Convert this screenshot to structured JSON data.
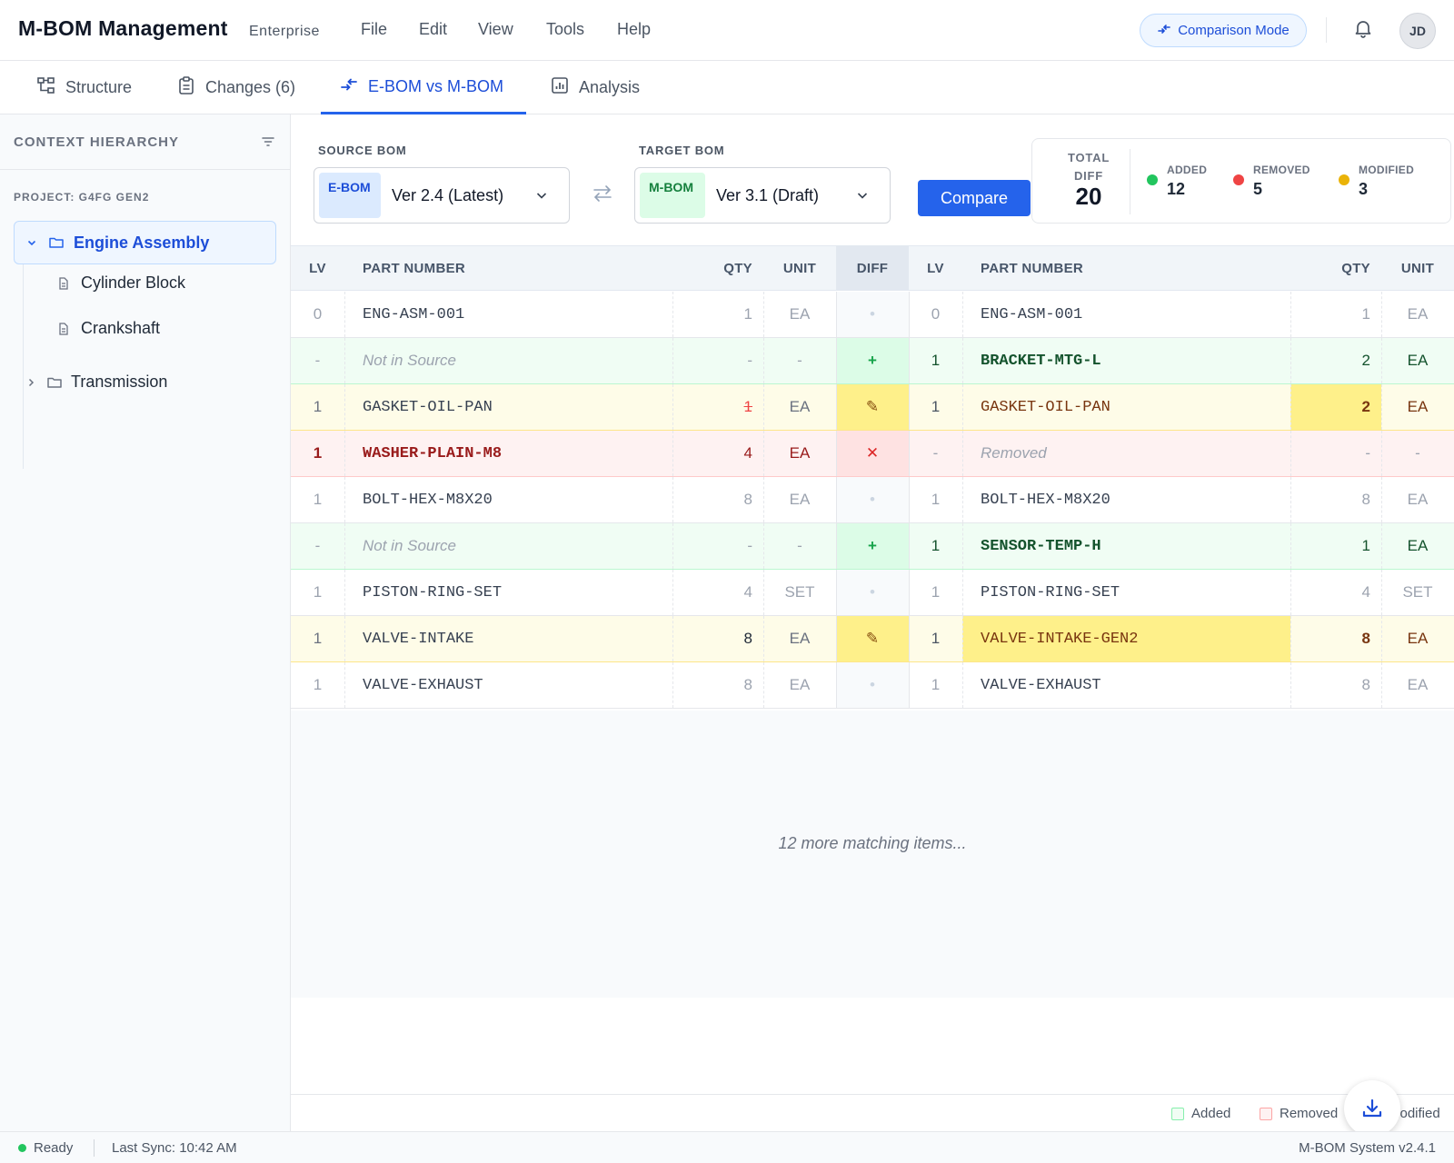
{
  "app": {
    "title": "M-BOM Management",
    "edition": "Enterprise"
  },
  "menu": [
    "File",
    "Edit",
    "View",
    "Tools",
    "Help"
  ],
  "header": {
    "comparison_mode": "Comparison Mode",
    "avatar_initials": "JD"
  },
  "tabs": [
    {
      "label": "Structure",
      "icon": "hierarchy-icon"
    },
    {
      "label": "Changes (6)",
      "icon": "clipboard-icon"
    },
    {
      "label": "E-BOM vs M-BOM",
      "icon": "compare-arrows-icon",
      "active": true
    },
    {
      "label": "Analysis",
      "icon": "bar-chart-icon"
    }
  ],
  "sidebar": {
    "title": "CONTEXT HIERARCHY",
    "project": "PROJECT: G4FG GEN2",
    "tree": [
      {
        "label": "Engine Assembly",
        "expanded": true,
        "selected": true
      },
      {
        "label": "Cylinder Block"
      },
      {
        "label": "Crankshaft"
      },
      {
        "label": "Transmission",
        "expanded": false
      }
    ]
  },
  "compare": {
    "source_label": "SOURCE BOM",
    "source_badge": "E-BOM",
    "source_value": "Ver 2.4 (Latest)",
    "target_label": "TARGET BOM",
    "target_badge": "M-BOM",
    "target_value": "Ver 3.1 (Draft)",
    "button": "Compare"
  },
  "summary": {
    "total_label": "TOTAL DIFF",
    "total": "20",
    "added_label": "ADDED",
    "added": "12",
    "removed_label": "REMOVED",
    "removed": "5",
    "modified_label": "MODIFIED",
    "modified": "3"
  },
  "colors": {
    "accent": "#2563eb",
    "added": "#22c55e",
    "removed": "#ef4444",
    "modified": "#eab308"
  },
  "table": {
    "headers": [
      "LV",
      "PART NUMBER",
      "QTY",
      "UNIT",
      "DIFF",
      "LV",
      "PART NUMBER",
      "QTY",
      "UNIT"
    ],
    "rows": [
      {
        "status": "same",
        "s_lv": "0",
        "s_part": "ENG-ASM-001",
        "s_qty": "1",
        "s_unit": "EA",
        "diff": "•",
        "t_lv": "0",
        "t_part": "ENG-ASM-001",
        "t_qty": "1",
        "t_unit": "EA"
      },
      {
        "status": "added",
        "s_lv": "-",
        "s_part": "Not in Source",
        "s_qty": "-",
        "s_unit": "-",
        "diff": "+",
        "t_lv": "1",
        "t_part": "BRACKET-MTG-L",
        "t_qty": "2",
        "t_unit": "EA"
      },
      {
        "status": "modified",
        "s_lv": "1",
        "s_part": "GASKET-OIL-PAN",
        "s_qty": "1",
        "s_unit": "EA",
        "diff": "✎",
        "t_lv": "1",
        "t_part": "GASKET-OIL-PAN",
        "t_qty": "2",
        "t_unit": "EA",
        "qty_changed": true
      },
      {
        "status": "removed",
        "s_lv": "1",
        "s_part": "WASHER-PLAIN-M8",
        "s_qty": "4",
        "s_unit": "EA",
        "diff": "✕",
        "t_lv": "-",
        "t_part": "Removed",
        "t_qty": "-",
        "t_unit": "-"
      },
      {
        "status": "same",
        "s_lv": "1",
        "s_part": "BOLT-HEX-M8X20",
        "s_qty": "8",
        "s_unit": "EA",
        "diff": "•",
        "t_lv": "1",
        "t_part": "BOLT-HEX-M8X20",
        "t_qty": "8",
        "t_unit": "EA"
      },
      {
        "status": "added",
        "s_lv": "-",
        "s_part": "Not in Source",
        "s_qty": "-",
        "s_unit": "-",
        "diff": "+",
        "t_lv": "1",
        "t_part": "SENSOR-TEMP-H",
        "t_qty": "1",
        "t_unit": "EA"
      },
      {
        "status": "same",
        "s_lv": "1",
        "s_part": "PISTON-RING-SET",
        "s_qty": "4",
        "s_unit": "SET",
        "diff": "•",
        "t_lv": "1",
        "t_part": "PISTON-RING-SET",
        "t_qty": "4",
        "t_unit": "SET"
      },
      {
        "status": "modified",
        "s_lv": "1",
        "s_part": "VALVE-INTAKE",
        "s_qty": "8",
        "s_unit": "EA",
        "diff": "✎",
        "t_lv": "1",
        "t_part": "VALVE-INTAKE-GEN2",
        "t_qty": "8",
        "t_unit": "EA",
        "part_changed": true
      },
      {
        "status": "same",
        "s_lv": "1",
        "s_part": "VALVE-EXHAUST",
        "s_qty": "8",
        "s_unit": "EA",
        "diff": "•",
        "t_lv": "1",
        "t_part": "VALVE-EXHAUST",
        "t_qty": "8",
        "t_unit": "EA"
      }
    ],
    "more_text": "12 more matching items..."
  },
  "legend": {
    "added": "Added",
    "removed": "Removed",
    "modified": "Modified"
  },
  "status": {
    "state": "Ready",
    "last_sync": "Last Sync: 10:42 AM",
    "version": "M-BOM System v2.4.1"
  }
}
